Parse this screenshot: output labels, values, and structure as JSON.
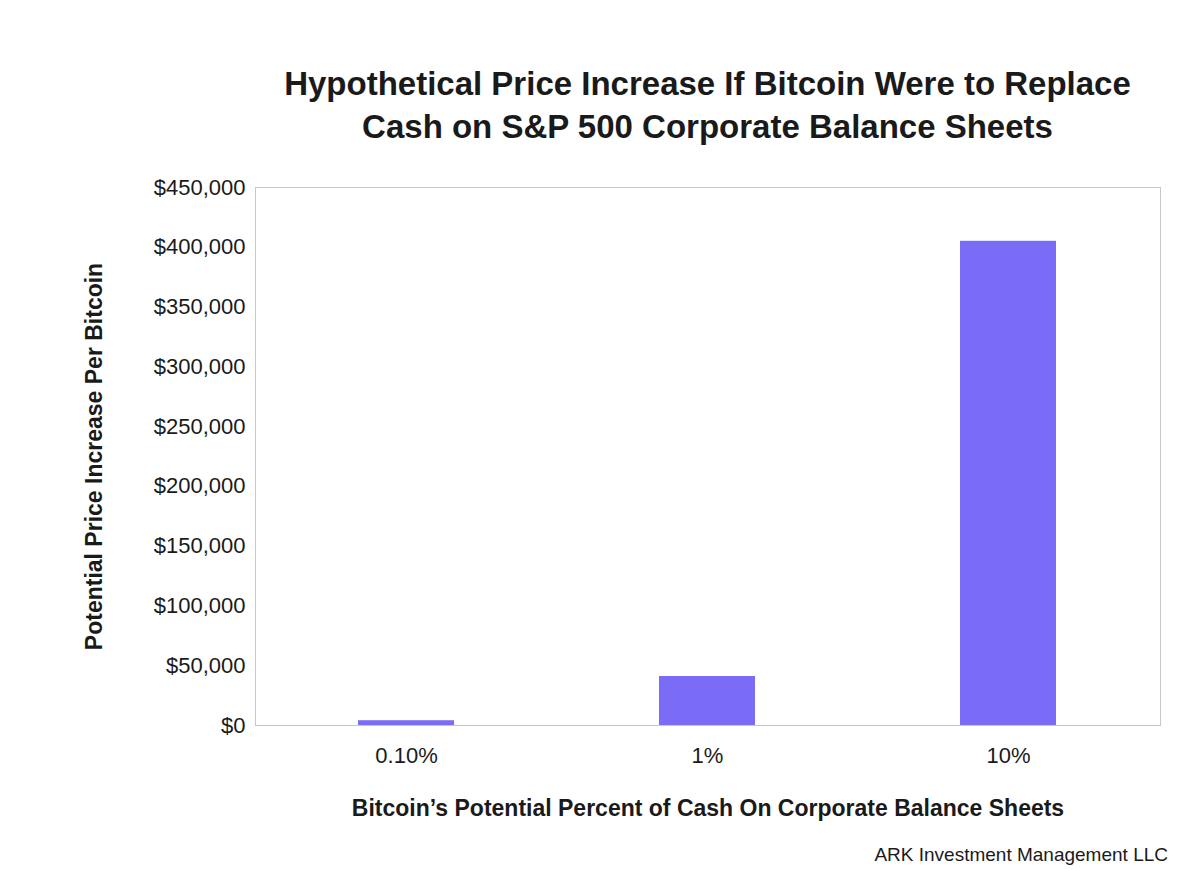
{
  "chart_data": {
    "type": "bar",
    "title": "Hypothetical Price Increase If Bitcoin Were to Replace Cash on S&P 500 Corporate Balance Sheets",
    "x_label": "Bitcoin’s Potential Percent of Cash On Corporate Balance Sheets",
    "y_label": "Potential Price Increase Per Bitcoin",
    "source": "ARK Investment Management LLC",
    "categories": [
      "0.10%",
      "1%",
      "10%"
    ],
    "values": [
      4000,
      41000,
      405000
    ],
    "color": "#7b6cf7",
    "ylim": [
      0,
      450000
    ],
    "yticks": [
      {
        "value": 0,
        "label": "$0"
      },
      {
        "value": 50000,
        "label": "$50,000"
      },
      {
        "value": 100000,
        "label": "$100,000"
      },
      {
        "value": 150000,
        "label": "$150,000"
      },
      {
        "value": 200000,
        "label": "$200,000"
      },
      {
        "value": 250000,
        "label": "$250,000"
      },
      {
        "value": 300000,
        "label": "$300,000"
      },
      {
        "value": 350000,
        "label": "$350,000"
      },
      {
        "value": 400000,
        "label": "$400,000"
      },
      {
        "value": 450000,
        "label": "$450,000"
      }
    ],
    "grid": false
  }
}
